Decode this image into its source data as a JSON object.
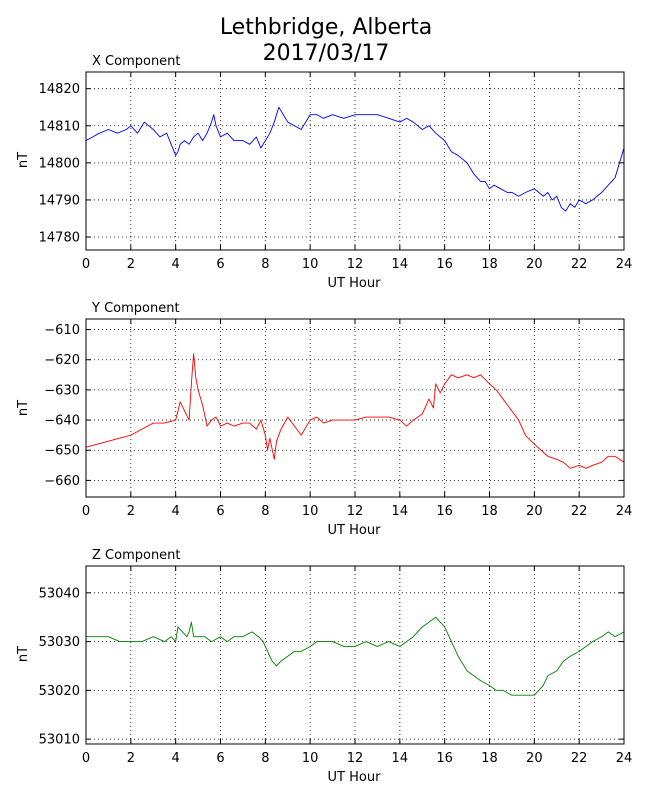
{
  "figure": {
    "title": [
      "Lethbridge, Alberta",
      "2017/03/17"
    ]
  },
  "chart_data": [
    {
      "type": "line",
      "title": "X Component",
      "xlabel": "UT Hour",
      "ylabel": "nT",
      "xlim": [
        0,
        24
      ],
      "ylim": [
        14776.5,
        14824.5
      ],
      "xticks": [
        0,
        2,
        4,
        6,
        8,
        10,
        12,
        14,
        16,
        18,
        20,
        22,
        24
      ],
      "yticks": [
        14780,
        14790,
        14800,
        14810,
        14820
      ],
      "ytick_labels": [
        "14780",
        "14790",
        "14800",
        "14810",
        "14820"
      ],
      "grid": true,
      "color": "#0000ff",
      "x": [
        0,
        0.3,
        0.6,
        1,
        1.4,
        1.8,
        2,
        2.3,
        2.6,
        3,
        3.3,
        3.6,
        3.8,
        4,
        4.1,
        4.2,
        4.4,
        4.6,
        4.8,
        5,
        5.2,
        5.4,
        5.6,
        5.7,
        5.8,
        6,
        6.3,
        6.6,
        7,
        7.3,
        7.6,
        7.8,
        8,
        8.2,
        8.4,
        8.6,
        8.8,
        9,
        9.3,
        9.6,
        10,
        10.3,
        10.6,
        11,
        11.5,
        12,
        12.5,
        13,
        13.5,
        14,
        14.3,
        14.6,
        15,
        15.3,
        15.6,
        16,
        16.3,
        16.6,
        17,
        17.3,
        17.6,
        17.8,
        18,
        18.2,
        18.5,
        18.8,
        19,
        19.3,
        19.6,
        20,
        20.2,
        20.4,
        20.6,
        20.8,
        21,
        21.2,
        21.4,
        21.6,
        21.8,
        22,
        22.3,
        22.6,
        23,
        23.3,
        23.6,
        24
      ],
      "values": [
        14806,
        14807,
        14808,
        14809,
        14808,
        14809,
        14810,
        14808,
        14811,
        14809,
        14807,
        14808,
        14805,
        14802,
        14803,
        14805,
        14806,
        14805,
        14807,
        14808,
        14806,
        14808,
        14811,
        14813,
        14810,
        14807,
        14808,
        14806,
        14806,
        14805,
        14807,
        14804,
        14806,
        14808,
        14811,
        14815,
        14813,
        14811,
        14810,
        14809,
        14813,
        14813,
        14812,
        14813,
        14812,
        14813,
        14813,
        14813,
        14812,
        14811,
        14812,
        14811,
        14809,
        14810,
        14808,
        14806,
        14803,
        14802,
        14800,
        14797,
        14795,
        14795,
        14793,
        14794,
        14793,
        14792,
        14792,
        14791,
        14792,
        14793,
        14792,
        14791,
        14792,
        14790,
        14791,
        14788,
        14787,
        14789,
        14788,
        14790,
        14789,
        14790,
        14792,
        14794,
        14796,
        14804
      ]
    },
    {
      "type": "line",
      "title": "Y Component",
      "xlabel": "UT Hour",
      "ylabel": "nT",
      "xlim": [
        0,
        24
      ],
      "ylim": [
        -665.5,
        -606.5
      ],
      "xticks": [
        0,
        2,
        4,
        6,
        8,
        10,
        12,
        14,
        16,
        18,
        20,
        22,
        24
      ],
      "yticks": [
        -660,
        -650,
        -640,
        -630,
        -620,
        -610
      ],
      "ytick_labels": [
        "−660",
        "−650",
        "−640",
        "−630",
        "−620",
        "−610"
      ],
      "grid": true,
      "color": "#ff0000",
      "x": [
        0,
        0.5,
        1,
        1.5,
        2,
        2.5,
        3,
        3.5,
        4,
        4.2,
        4.4,
        4.6,
        4.7,
        4.8,
        4.9,
        5,
        5.2,
        5.4,
        5.6,
        5.8,
        6,
        6.3,
        6.6,
        7,
        7.3,
        7.6,
        7.8,
        8,
        8.1,
        8.2,
        8.4,
        8.5,
        8.7,
        9,
        9.3,
        9.6,
        10,
        10.3,
        10.6,
        11,
        11.5,
        12,
        12.5,
        13,
        13.5,
        14,
        14.3,
        14.6,
        15,
        15.3,
        15.5,
        15.6,
        15.8,
        16,
        16.3,
        16.6,
        17,
        17.3,
        17.6,
        18,
        18.3,
        18.6,
        19,
        19.3,
        19.6,
        20,
        20.3,
        20.6,
        21,
        21.3,
        21.6,
        22,
        22.3,
        22.6,
        23,
        23.3,
        23.6,
        24
      ],
      "values": [
        -649,
        -648,
        -647,
        -646,
        -645,
        -643,
        -641,
        -641,
        -640,
        -634,
        -637,
        -640,
        -628,
        -618,
        -626,
        -630,
        -635,
        -642,
        -640,
        -639,
        -642,
        -641,
        -642,
        -641,
        -641,
        -643,
        -640,
        -645,
        -650,
        -646,
        -653,
        -647,
        -643,
        -639,
        -642,
        -645,
        -640,
        -639,
        -641,
        -640,
        -640,
        -640,
        -639,
        -639,
        -639,
        -640,
        -642,
        -640,
        -638,
        -633,
        -636,
        -628,
        -631,
        -628,
        -625,
        -626,
        -625,
        -626,
        -625,
        -628,
        -630,
        -633,
        -637,
        -640,
        -645,
        -648,
        -650,
        -652,
        -653,
        -654,
        -656,
        -655,
        -656,
        -655,
        -654,
        -652,
        -652,
        -654
      ]
    },
    {
      "type": "line",
      "title": "Z Component",
      "xlabel": "UT Hour",
      "ylabel": "nT",
      "xlim": [
        0,
        24
      ],
      "ylim": [
        53009,
        53045.5
      ],
      "xticks": [
        0,
        2,
        4,
        6,
        8,
        10,
        12,
        14,
        16,
        18,
        20,
        22,
        24
      ],
      "yticks": [
        53010,
        53020,
        53030,
        53040
      ],
      "ytick_labels": [
        "53010",
        "53020",
        "53030",
        "53040"
      ],
      "grid": true,
      "color": "#008000",
      "x": [
        0,
        0.5,
        1,
        1.5,
        2,
        2.5,
        3,
        3.5,
        3.8,
        4,
        4.1,
        4.3,
        4.5,
        4.6,
        4.7,
        4.8,
        5,
        5.3,
        5.6,
        6,
        6.3,
        6.6,
        7,
        7.4,
        7.7,
        7.9,
        8.1,
        8.3,
        8.5,
        8.7,
        9,
        9.3,
        9.6,
        10,
        10.3,
        10.6,
        11,
        11.5,
        12,
        12.5,
        13,
        13.5,
        14,
        14.3,
        14.6,
        15,
        15.3,
        15.6,
        16,
        16.3,
        16.6,
        17,
        17.3,
        17.6,
        18,
        18.3,
        18.6,
        19,
        19.3,
        19.6,
        20,
        20.2,
        20.4,
        20.6,
        21,
        21.3,
        21.6,
        22,
        22.3,
        22.6,
        23,
        23.3,
        23.6,
        24
      ],
      "values": [
        53031,
        53031,
        53031,
        53030,
        53030,
        53030,
        53031,
        53030,
        53031,
        53030,
        53033,
        53032,
        53031,
        53032,
        53034,
        53031,
        53031,
        53031,
        53030,
        53031,
        53030,
        53031,
        53031,
        53032,
        53031,
        53030,
        53028,
        53026,
        53025,
        53026,
        53027,
        53028,
        53028,
        53029,
        53030,
        53030,
        53030,
        53029,
        53029,
        53030,
        53029,
        53030,
        53029,
        53030,
        53031,
        53033,
        53034,
        53035,
        53033,
        53030,
        53027,
        53024,
        53023,
        53022,
        53021,
        53020,
        53020,
        53019,
        53019,
        53019,
        53019,
        53020,
        53021,
        53023,
        53024,
        53026,
        53027,
        53028,
        53029,
        53030,
        53031,
        53032,
        53031,
        53032
      ]
    }
  ]
}
